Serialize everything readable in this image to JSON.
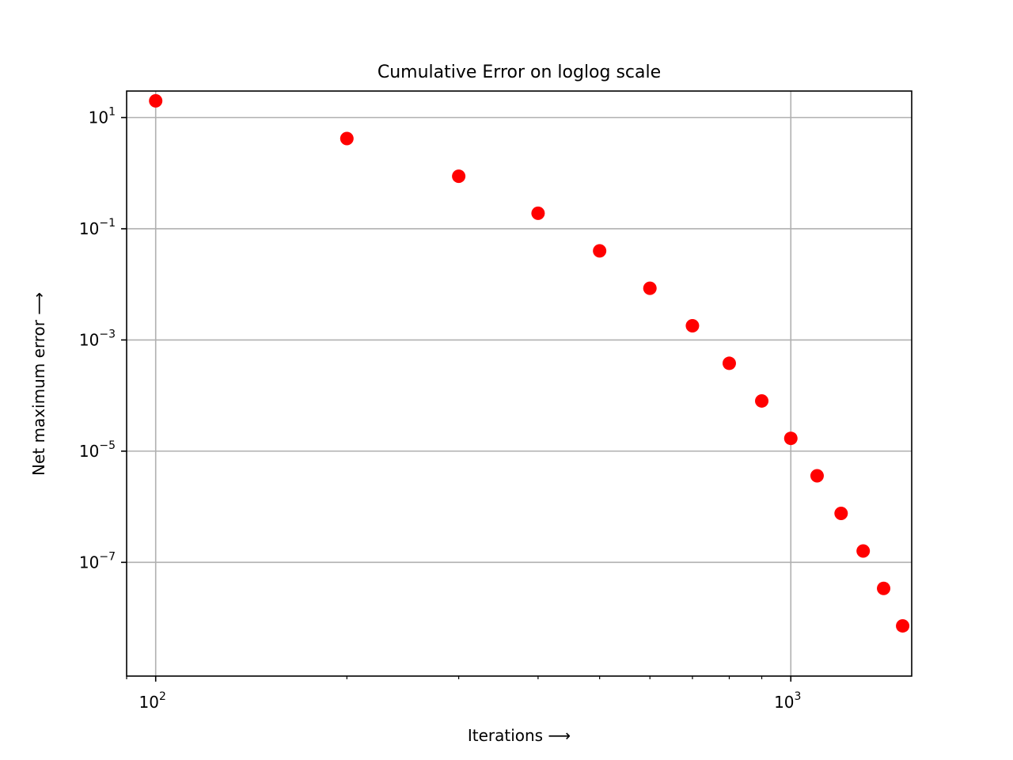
{
  "chart_data": {
    "type": "scatter",
    "title": "Cumulative Error on loglog scale",
    "xlabel": "Iterations",
    "ylabel": "Net maximum error",
    "label_arrow": "⟶",
    "xscale": "log",
    "yscale": "log",
    "xlim": [
      90,
      1550
    ],
    "ylim": [
      9e-10,
      30
    ],
    "grid": true,
    "marker_color": "#ff0000",
    "x_ticks": [
      {
        "base": "10",
        "exp": "2",
        "value": 100
      },
      {
        "base": "10",
        "exp": "3",
        "value": 1000
      }
    ],
    "y_ticks": [
      {
        "base": "10",
        "exp": "1",
        "value": 10
      },
      {
        "base": "10",
        "exp": "−1",
        "value": 0.1
      },
      {
        "base": "10",
        "exp": "−3",
        "value": 0.001
      },
      {
        "base": "10",
        "exp": "−5",
        "value": 1e-05
      },
      {
        "base": "10",
        "exp": "−7",
        "value": 1e-07
      }
    ],
    "series": [
      {
        "x": [
          100,
          200,
          300,
          400,
          500,
          600,
          700,
          800,
          900,
          1000,
          1100,
          1200,
          1300,
          1400,
          1500
        ],
        "y": [
          20,
          4.2,
          0.88,
          0.19,
          0.04,
          0.0085,
          0.0018,
          0.00038,
          8e-05,
          1.7e-05,
          3.6e-06,
          7.6e-07,
          1.6e-07,
          3.4e-08,
          7.2e-09
        ]
      }
    ]
  }
}
